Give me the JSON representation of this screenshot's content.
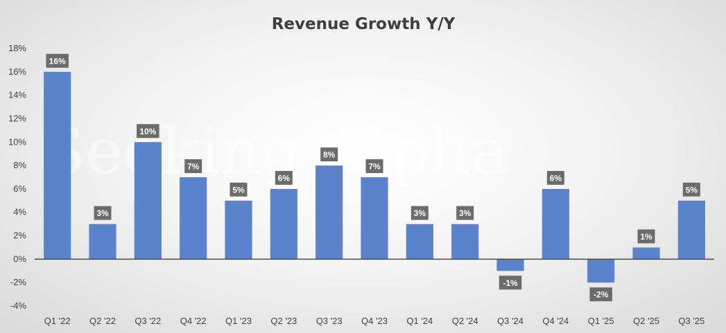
{
  "chart_data": {
    "type": "bar",
    "title": "Revenue Growth Y/Y",
    "xlabel": "",
    "ylabel": "",
    "categories": [
      "Q1 '22",
      "Q2 '22",
      "Q3 '22",
      "Q4 '22",
      "Q1 '23",
      "Q2 '23",
      "Q3 '23",
      "Q4 '23",
      "Q1 '24",
      "Q2 '24",
      "Q3 '24",
      "Q4 '24",
      "Q1 '25",
      "Q2 '25",
      "Q3 '25"
    ],
    "values": [
      16,
      3,
      10,
      7,
      5,
      6,
      8,
      7,
      3,
      3,
      -1,
      6,
      -2,
      1,
      5
    ],
    "data_labels": [
      "16%",
      "3%",
      "10%",
      "7%",
      "5%",
      "6%",
      "8%",
      "7%",
      "3%",
      "3%",
      "-1%",
      "6%",
      "-2%",
      "1%",
      "5%"
    ],
    "yticks": [
      -4,
      -2,
      0,
      2,
      4,
      6,
      8,
      10,
      12,
      14,
      16,
      18
    ],
    "ytick_labels": [
      "-4%",
      "-2%",
      "0%",
      "2%",
      "4%",
      "6%",
      "8%",
      "10%",
      "12%",
      "14%",
      "16%",
      "18%"
    ],
    "ylim": [
      -4,
      18
    ],
    "grid": false,
    "legend": "none",
    "bar_color": "#5b83cc",
    "label_box_color": "#6b6b6b",
    "axis_color": "#4a4a4a",
    "watermark": "Seeking Alpha"
  }
}
